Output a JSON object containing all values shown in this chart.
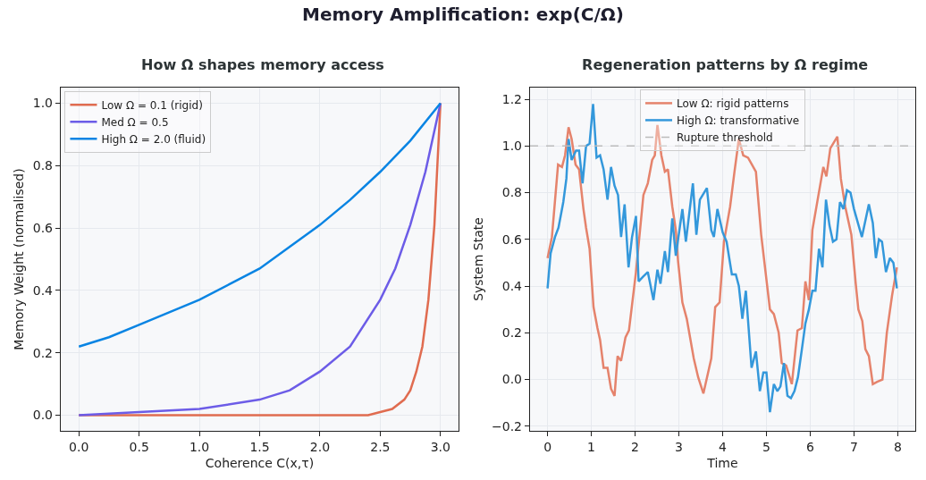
{
  "chart_data": [
    {
      "type": "other",
      "title": "Memory Amplification: exp(C/Ω)"
    },
    {
      "type": "line",
      "title": "How Ω shapes memory access",
      "xlabel": "Coherence C(x,τ)",
      "ylabel": "Memory Weight (normalised)",
      "xlim": [
        -0.15,
        3.15
      ],
      "xticks": [
        {
          "value": 0,
          "label": "0.0"
        },
        0.5,
        {
          "value": 1,
          "label": "1.0"
        },
        1.5,
        {
          "value": 2,
          "label": "2.0"
        },
        2.5,
        {
          "value": 3,
          "label": "3.0"
        }
      ],
      "ylim": [
        -0.05,
        1.05
      ],
      "yticks": [
        {
          "value": 0,
          "label": "0.0"
        },
        0.2,
        0.4,
        0.6,
        0.8,
        {
          "value": 1,
          "label": "1.0"
        }
      ],
      "grid": true,
      "legend": "top left",
      "line_style": "solid",
      "marker": "none",
      "series": [
        {
          "name": "Low Ω = 0.1 (rigid)",
          "color": "#e06c50",
          "x": [
            0,
            0.5,
            1,
            1.5,
            2,
            2.4,
            2.5,
            2.6,
            2.7,
            2.75,
            2.8,
            2.85,
            2.9,
            2.95,
            3
          ],
          "values": [
            0,
            0,
            0,
            0,
            0,
            0,
            0.01,
            0.02,
            0.05,
            0.08,
            0.14,
            0.22,
            0.37,
            0.61,
            1
          ]
        },
        {
          "name": "Med Ω = 0.5",
          "color": "#6c5ce7",
          "x": [
            0,
            0.5,
            1,
            1.5,
            1.75,
            2,
            2.25,
            2.5,
            2.625,
            2.75,
            2.875,
            3
          ],
          "values": [
            0,
            0.01,
            0.02,
            0.05,
            0.08,
            0.14,
            0.22,
            0.37,
            0.47,
            0.61,
            0.78,
            1
          ]
        },
        {
          "name": "High Ω = 2.0 (fluid)",
          "color": "#0984e3",
          "x": [
            0,
            0.25,
            0.5,
            0.75,
            1,
            1.25,
            1.5,
            1.75,
            2,
            2.25,
            2.5,
            2.75,
            3
          ],
          "values": [
            0.22,
            0.25,
            0.29,
            0.33,
            0.37,
            0.42,
            0.47,
            0.54,
            0.61,
            0.69,
            0.78,
            0.88,
            1
          ]
        }
      ]
    },
    {
      "type": "line",
      "title": "Regeneration patterns by Ω regime",
      "xlabel": "Time",
      "ylabel": "System State",
      "xlim": [
        -0.4,
        8.4
      ],
      "xticks": [
        0,
        1,
        2,
        3,
        4,
        5,
        6,
        7,
        8
      ],
      "ylim": [
        -0.22,
        1.25
      ],
      "yticks": [
        {
          "value": -0.2,
          "label": "−0.2"
        },
        {
          "value": 0,
          "label": "0.0"
        },
        0.2,
        0.4,
        0.6,
        0.8,
        {
          "value": 1,
          "label": "1.0"
        },
        1.2
      ],
      "grid": true,
      "legend": "top",
      "line_style": "solid",
      "marker": "none",
      "ref_lines": [
        {
          "axis": "y",
          "value": 1,
          "label": "Rupture threshold",
          "color": "#bbbbbb",
          "line_style": "dashed"
        }
      ],
      "series": [
        {
          "name": "Low Ω: rigid patterns",
          "color": "#e5836c",
          "x": [
            0,
            0.1,
            0.24,
            0.33,
            0.4,
            0.48,
            0.55,
            0.64,
            0.72,
            0.82,
            0.88,
            0.96,
            1.05,
            1.14,
            1.2,
            1.28,
            1.37,
            1.45,
            1.53,
            1.6,
            1.68,
            1.78,
            1.86,
            2.02,
            2.19,
            2.29,
            2.39,
            2.45,
            2.51,
            2.6,
            2.68,
            2.75,
            2.85,
            2.93,
            2.98,
            3.08,
            3.18,
            3.34,
            3.44,
            3.56,
            3.74,
            3.83,
            3.93,
            4.03,
            4.17,
            4.27,
            4.37,
            4.47,
            4.58,
            4.76,
            4.88,
            5.08,
            5.17,
            5.28,
            5.35,
            5.45,
            5.58,
            5.71,
            5.81,
            5.89,
            5.97,
            6.05,
            6.17,
            6.3,
            6.37,
            6.46,
            6.62,
            6.7,
            6.8,
            6.94,
            7.04,
            7.1,
            7.19,
            7.26,
            7.34,
            7.43,
            7.53,
            7.65,
            7.75,
            7.87,
            7.98
          ],
          "values": [
            0.52,
            0.61,
            0.92,
            0.91,
            0.96,
            1.08,
            1.03,
            0.92,
            0.9,
            0.73,
            0.65,
            0.56,
            0.31,
            0.22,
            0.17,
            0.05,
            0.05,
            -0.04,
            -0.07,
            0.1,
            0.08,
            0.18,
            0.21,
            0.46,
            0.79,
            0.84,
            0.94,
            0.96,
            1.09,
            0.96,
            0.89,
            0.9,
            0.74,
            0.64,
            0.51,
            0.33,
            0.26,
            0.09,
            0.01,
            -0.06,
            0.09,
            0.31,
            0.33,
            0.59,
            0.74,
            0.89,
            1.03,
            0.96,
            0.95,
            0.89,
            0.62,
            0.3,
            0.28,
            0.2,
            0.07,
            0.06,
            -0.02,
            0.21,
            0.22,
            0.42,
            0.34,
            0.64,
            0.77,
            0.91,
            0.87,
            0.99,
            1.04,
            0.86,
            0.74,
            0.62,
            0.41,
            0.3,
            0.25,
            0.13,
            0.1,
            -0.02,
            -0.01,
            0,
            0.2,
            0.36,
            0.48
          ]
        },
        {
          "name": "High Ω: transformative",
          "color": "#3498db",
          "x": [
            0,
            0.07,
            0.17,
            0.25,
            0.36,
            0.43,
            0.48,
            0.55,
            0.65,
            0.72,
            0.8,
            0.88,
            0.96,
            1.04,
            1.12,
            1.2,
            1.28,
            1.37,
            1.45,
            1.53,
            1.61,
            1.68,
            1.76,
            1.85,
            1.93,
            2.02,
            2.08,
            2.18,
            2.29,
            2.42,
            2.51,
            2.58,
            2.68,
            2.75,
            2.85,
            2.93,
            3.08,
            3.16,
            3.32,
            3.4,
            3.48,
            3.64,
            3.74,
            3.8,
            3.88,
            4,
            4.09,
            4.21,
            4.3,
            4.37,
            4.45,
            4.53,
            4.66,
            4.76,
            4.85,
            4.93,
            5,
            5.08,
            5.17,
            5.25,
            5.32,
            5.4,
            5.48,
            5.56,
            5.64,
            5.72,
            5.81,
            5.89,
            5.97,
            6.05,
            6.12,
            6.2,
            6.28,
            6.36,
            6.44,
            6.52,
            6.6,
            6.68,
            6.76,
            6.84,
            6.92,
            7,
            7.18,
            7.34,
            7.43,
            7.5,
            7.57,
            7.64,
            7.73,
            7.82,
            7.9,
            7.98
          ],
          "values": [
            0.39,
            0.54,
            0.61,
            0.65,
            0.76,
            0.86,
            1.03,
            0.94,
            0.98,
            0.98,
            0.84,
            1,
            1.01,
            1.18,
            0.95,
            0.96,
            0.9,
            0.77,
            0.91,
            0.83,
            0.79,
            0.61,
            0.75,
            0.48,
            0.61,
            0.7,
            0.42,
            0.44,
            0.46,
            0.34,
            0.47,
            0.41,
            0.55,
            0.46,
            0.69,
            0.53,
            0.73,
            0.59,
            0.84,
            0.62,
            0.77,
            0.82,
            0.64,
            0.61,
            0.73,
            0.63,
            0.59,
            0.45,
            0.45,
            0.4,
            0.26,
            0.38,
            0.05,
            0.12,
            -0.05,
            0.03,
            0.03,
            -0.14,
            -0.02,
            -0.05,
            -0.03,
            0.07,
            -0.07,
            -0.08,
            -0.05,
            0.01,
            0.13,
            0.24,
            0.3,
            0.38,
            0.38,
            0.56,
            0.48,
            0.77,
            0.66,
            0.59,
            0.6,
            0.76,
            0.73,
            0.81,
            0.8,
            0.73,
            0.61,
            0.75,
            0.67,
            0.52,
            0.6,
            0.59,
            0.46,
            0.52,
            0.5,
            0.39
          ]
        }
      ]
    }
  ]
}
